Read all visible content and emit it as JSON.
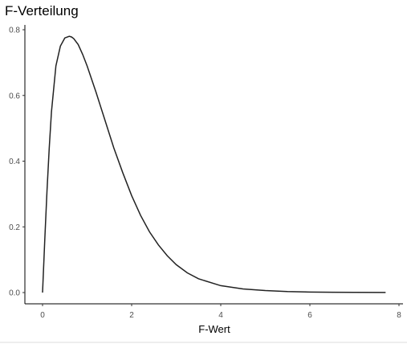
{
  "chart_data": {
    "type": "line",
    "title": "F-Verteilung",
    "xlabel": "F-Wert",
    "ylabel": "",
    "xlim": [
      0,
      8
    ],
    "ylim": [
      0,
      0.8
    ],
    "xticks": [
      0,
      2,
      4,
      6,
      8
    ],
    "yticks": [
      0.0,
      0.2,
      0.4,
      0.6,
      0.8
    ],
    "xtick_labels": [
      "0",
      "2",
      "4",
      "6",
      "8"
    ],
    "ytick_labels": [
      "0.0",
      "0.2",
      "0.4",
      "0.6",
      "0.8"
    ],
    "grid": false,
    "series": [
      {
        "x": [
          0.0,
          0.05,
          0.1,
          0.15,
          0.2,
          0.3,
          0.4,
          0.5,
          0.6,
          0.65,
          0.7,
          0.8,
          0.9,
          1.0,
          1.2,
          1.4,
          1.6,
          1.8,
          2.0,
          2.2,
          2.4,
          2.6,
          2.8,
          3.0,
          3.25,
          3.5,
          4.0,
          4.5,
          5.0,
          5.5,
          6.0,
          6.5,
          7.0,
          7.7
        ],
        "y": [
          0.0,
          0.16,
          0.31,
          0.44,
          0.55,
          0.69,
          0.75,
          0.775,
          0.78,
          0.778,
          0.773,
          0.755,
          0.725,
          0.69,
          0.61,
          0.525,
          0.44,
          0.365,
          0.295,
          0.235,
          0.185,
          0.145,
          0.112,
          0.085,
          0.06,
          0.042,
          0.021,
          0.011,
          0.006,
          0.003,
          0.0016,
          0.0009,
          0.0005,
          0.0002
        ],
        "color": "#222222"
      }
    ]
  }
}
